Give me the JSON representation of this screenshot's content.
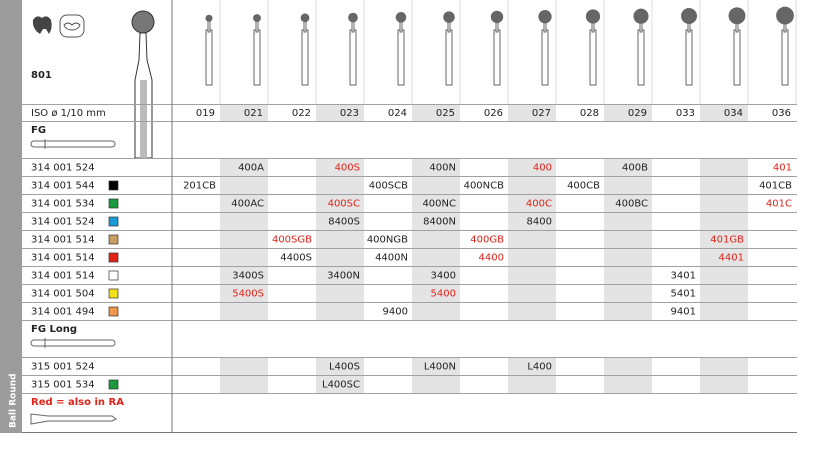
{
  "header": {
    "label": "801",
    "iso_label": "ISO ø 1/10 mm",
    "side_label": "Ball Round",
    "sizes": [
      "019",
      "021",
      "022",
      "023",
      "024",
      "025",
      "026",
      "027",
      "028",
      "029",
      "033",
      "034",
      "036"
    ]
  },
  "red_color": "#e2231a",
  "sections": [
    {
      "title": "FG",
      "rows": [
        {
          "code": "314 001 524",
          "swatch": null,
          "cells": [
            null,
            "400A",
            null,
            "400S",
            null,
            "400N",
            null,
            "400",
            null,
            "400B",
            null,
            null,
            "401"
          ],
          "red_cols": [
            3,
            7,
            12
          ]
        },
        {
          "code": "314 001 544",
          "swatch": "#000000",
          "cells": [
            "201CB",
            null,
            null,
            null,
            "400SCB",
            null,
            "400NCB",
            null,
            "400CB",
            null,
            null,
            null,
            "401CB"
          ],
          "red_cols": []
        },
        {
          "code": "314 001 534",
          "swatch": "#1a9a3c",
          "cells": [
            null,
            "400AC",
            null,
            "400SC",
            null,
            "400NC",
            null,
            "400C",
            null,
            "400BC",
            null,
            null,
            "401C"
          ],
          "red_cols": [
            3,
            7,
            12
          ]
        },
        {
          "code": "314 001 524",
          "swatch": "#1a9ad6",
          "cells": [
            null,
            null,
            null,
            "8400S",
            null,
            "8400N",
            null,
            "8400",
            null,
            null,
            null,
            null,
            null
          ],
          "red_cols": []
        },
        {
          "code": "314 001 514",
          "swatch": "#c9a063",
          "cells": [
            null,
            null,
            "400SGB",
            null,
            "400NGB",
            null,
            "400GB",
            null,
            null,
            null,
            null,
            "401GB",
            null
          ],
          "red_cols": [
            2,
            6,
            11
          ]
        },
        {
          "code": "314 001 514",
          "swatch": "#e2231a",
          "cells": [
            null,
            null,
            "4400S",
            null,
            "4400N",
            null,
            "4400",
            null,
            null,
            null,
            null,
            "4401",
            null
          ],
          "red_cols": [
            6,
            11
          ]
        },
        {
          "code": "314 001 514",
          "swatch": "#ffffff",
          "cells": [
            null,
            "3400S",
            null,
            "3400N",
            null,
            "3400",
            null,
            null,
            null,
            null,
            "3401",
            null,
            null
          ],
          "red_cols": []
        },
        {
          "code": "314 001 504",
          "swatch": "#f2e21a",
          "cells": [
            null,
            "5400S",
            null,
            null,
            null,
            "5400",
            null,
            null,
            null,
            null,
            "5401",
            null,
            null
          ],
          "red_cols": [
            1,
            5
          ]
        },
        {
          "code": "314 001 494",
          "swatch": "#f0964a",
          "cells": [
            null,
            null,
            null,
            null,
            "9400",
            null,
            null,
            null,
            null,
            null,
            "9401",
            null,
            null
          ],
          "red_cols": []
        }
      ]
    },
    {
      "title": "FG Long",
      "rows": [
        {
          "code": "315 001 524",
          "swatch": null,
          "cells": [
            null,
            null,
            null,
            "L400S",
            null,
            "L400N",
            null,
            "L400",
            null,
            null,
            null,
            null,
            null
          ],
          "red_cols": []
        },
        {
          "code": "315 001 534",
          "swatch": "#1a9a3c",
          "cells": [
            null,
            null,
            null,
            "L400SC",
            null,
            null,
            null,
            null,
            null,
            null,
            null,
            null,
            null
          ],
          "red_cols": []
        }
      ]
    }
  ],
  "note": "Red = also in RA"
}
